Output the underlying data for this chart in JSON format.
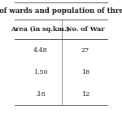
{
  "title": "of wards and population of thre",
  "columns": [
    "Area (in sq.km.)",
    "No. of War"
  ],
  "rows": [
    [
      "4.48",
      "27"
    ],
    [
      "1.50",
      "18"
    ],
    [
      ".18",
      "12"
    ]
  ],
  "row_bg": "#ffffff",
  "text_color": "#1a1a1a",
  "border_color": "#555555",
  "title_fontsize": 6.2,
  "header_fontsize": 5.8,
  "cell_fontsize": 5.8
}
